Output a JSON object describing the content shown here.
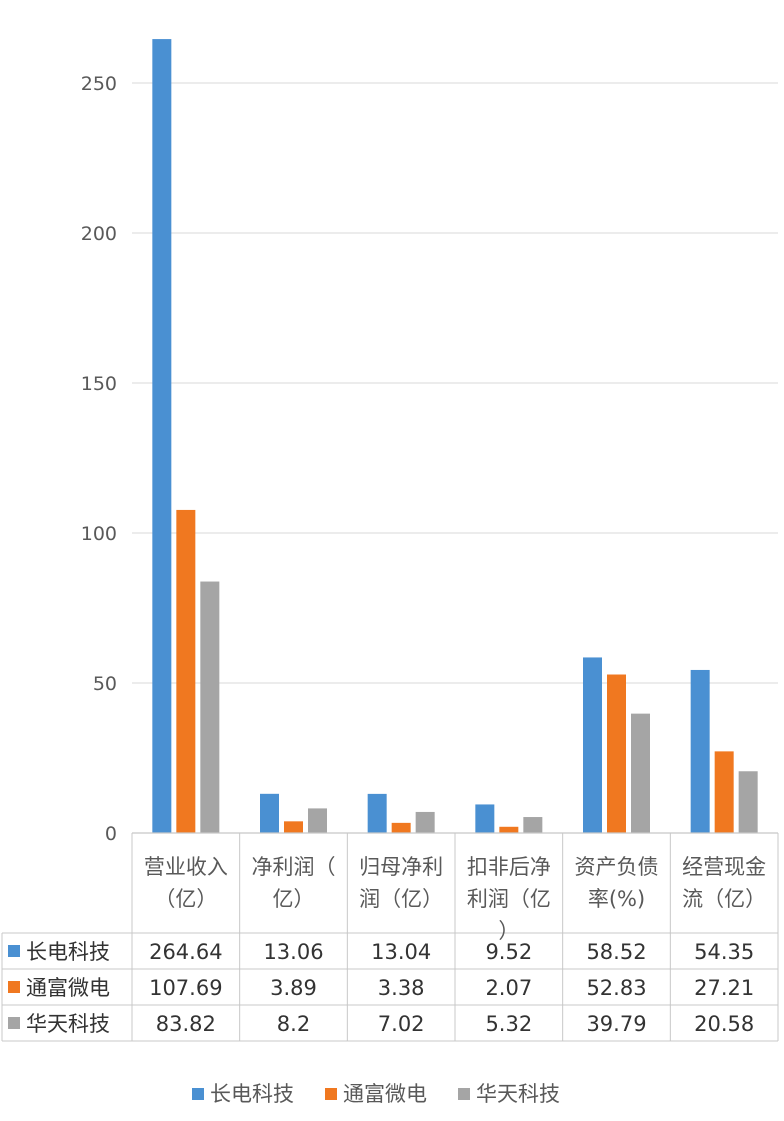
{
  "chart_data": {
    "type": "bar",
    "categories": [
      [
        "营业收入",
        "（亿）"
      ],
      [
        "净利润（",
        "亿）"
      ],
      [
        "归母净利",
        "润（亿）"
      ],
      [
        "扣非后净",
        "利润（亿",
        "）"
      ],
      [
        "资产负债",
        "率(%)"
      ],
      [
        "经营现金",
        "流（亿）"
      ]
    ],
    "series": [
      {
        "name": "长电科技",
        "color": "#4A90D2",
        "values": [
          264.64,
          13.06,
          13.04,
          9.52,
          58.52,
          54.35
        ],
        "labels": [
          "264.64",
          "13.06",
          "13.04",
          "9.52",
          "58.52",
          "54.35"
        ]
      },
      {
        "name": "通富微电",
        "color": "#F07820",
        "values": [
          107.69,
          3.89,
          3.38,
          2.07,
          52.83,
          27.21
        ],
        "labels": [
          "107.69",
          "3.89",
          "3.38",
          "2.07",
          "52.83",
          "27.21"
        ]
      },
      {
        "name": "华天科技",
        "color": "#A5A5A5",
        "values": [
          83.82,
          8.2,
          7.02,
          5.32,
          39.79,
          20.58
        ],
        "labels": [
          "83.82",
          "8.2",
          "7.02",
          "5.32",
          "39.79",
          "20.58"
        ]
      }
    ],
    "yticks": [
      "0",
      "50",
      "100",
      "150",
      "200",
      "250"
    ],
    "ylim": [
      0,
      250
    ],
    "grid": true,
    "data_table": true,
    "legend_position": "bottom"
  }
}
